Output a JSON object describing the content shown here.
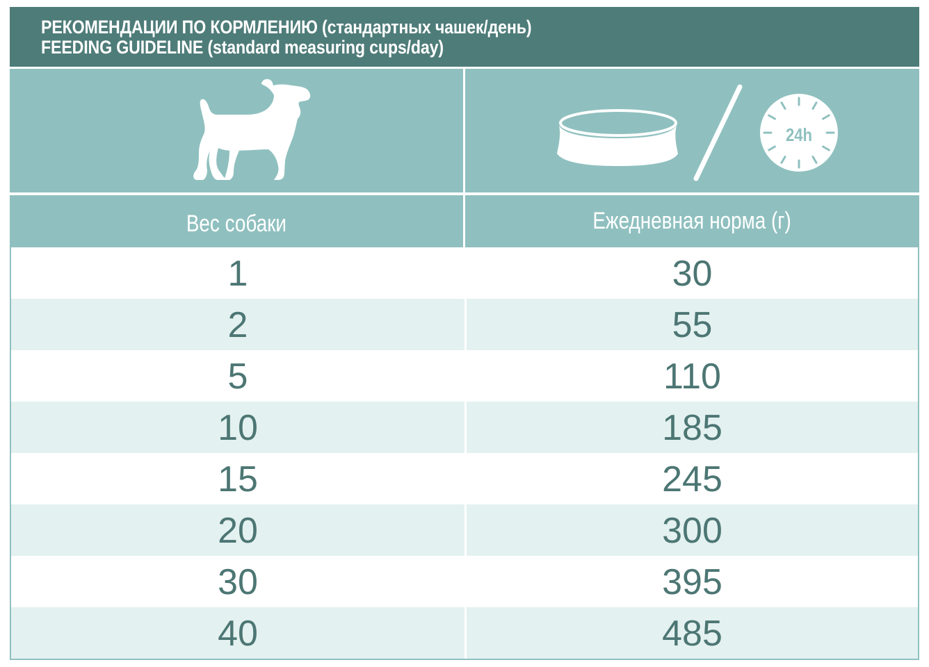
{
  "header": {
    "title_ru": "РЕКОМЕНДАЦИИ ПО КОРМЛЕНИЮ (стандартных чашек/день)",
    "title_en": "FEEDING GUIDELINE (standard measuring cups/day)"
  },
  "icons": {
    "dog": "dog-silhouette-icon",
    "bowl": "food-bowl-icon",
    "clock": "24h-clock-icon",
    "clock_text": "24h"
  },
  "columns": {
    "weight_label": "Вес собаки",
    "daily_label": "Ежедневная норма (г)"
  },
  "rows": [
    {
      "weight": "1",
      "daily": "30"
    },
    {
      "weight": "2",
      "daily": "55"
    },
    {
      "weight": "5",
      "daily": "110"
    },
    {
      "weight": "10",
      "daily": "185"
    },
    {
      "weight": "15",
      "daily": "245"
    },
    {
      "weight": "20",
      "daily": "300"
    },
    {
      "weight": "30",
      "daily": "395"
    },
    {
      "weight": "40",
      "daily": "485"
    }
  ],
  "colors": {
    "header_bg": "#4e7c79",
    "panel_bg": "#8fc0bf",
    "row_alt_bg": "#e3f1f0",
    "value_text": "#4c7673"
  }
}
